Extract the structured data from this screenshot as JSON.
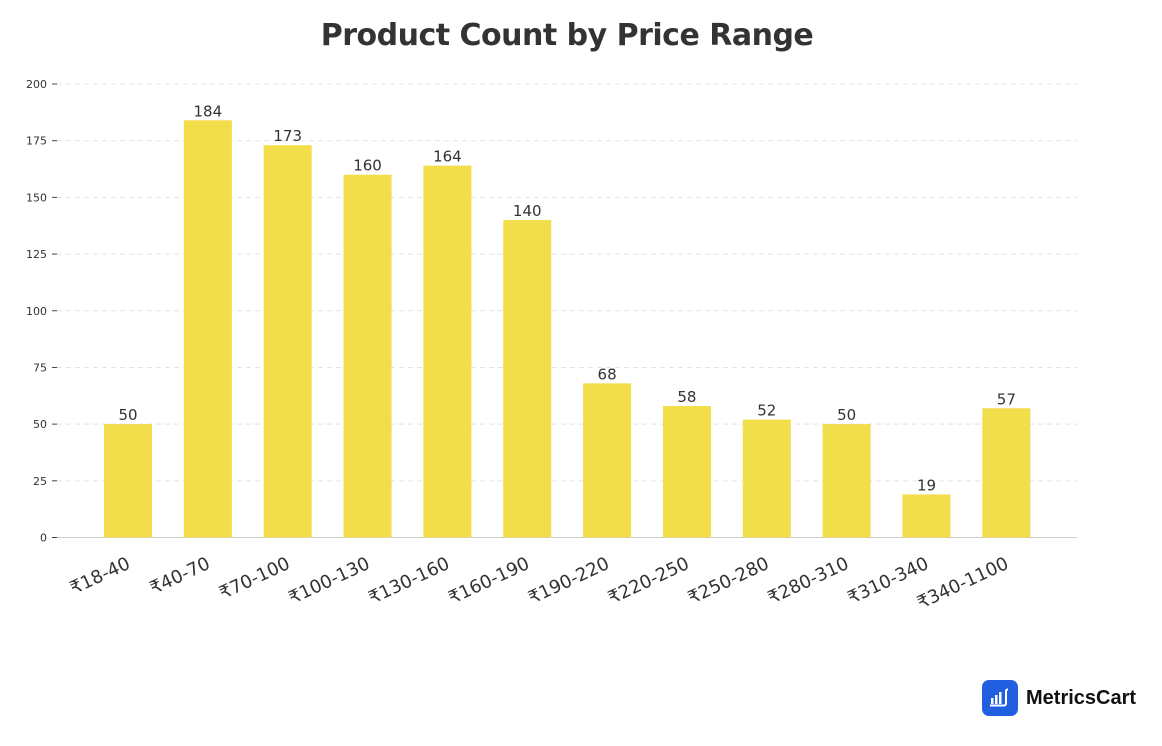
{
  "chart_data": {
    "type": "bar",
    "title": "Product Count by Price Range",
    "xlabel": "",
    "ylabel": "",
    "categories": [
      "₹18-40",
      "₹40-70",
      "₹70-100",
      "₹100-130",
      "₹130-160",
      "₹160-190",
      "₹190-220",
      "₹220-250",
      "₹250-280",
      "₹280-310",
      "₹310-340",
      "₹340-1100"
    ],
    "values": [
      50,
      184,
      173,
      160,
      164,
      140,
      68,
      58,
      52,
      50,
      19,
      57
    ],
    "ylim": [
      0,
      200
    ],
    "yticks": [
      0,
      25,
      50,
      75,
      100,
      125,
      150,
      175,
      200
    ],
    "grid": true,
    "legend": null,
    "bar_color": "#f2dd4a",
    "data_labels": true
  },
  "brand": {
    "name": "MetricsCart",
    "logo_color": "#1f5fe0"
  }
}
